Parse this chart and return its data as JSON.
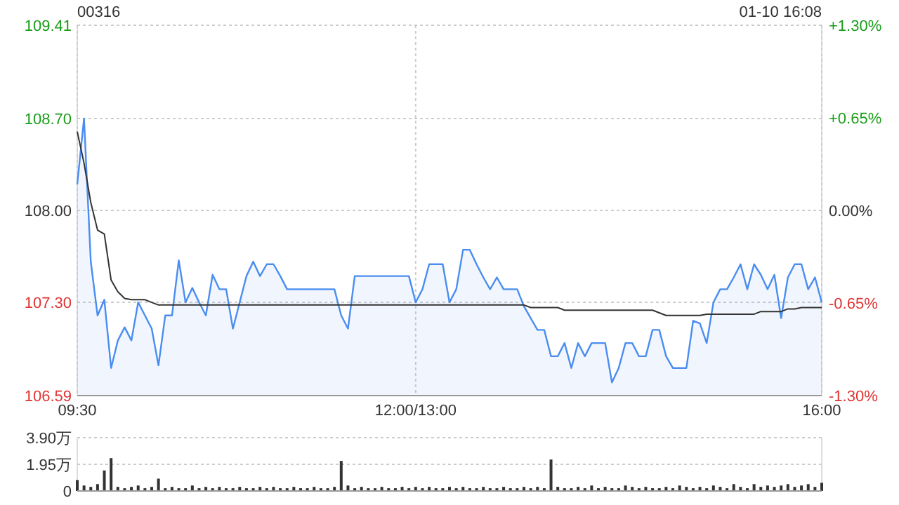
{
  "chart_data": [
    {
      "type": "line",
      "title": "00316",
      "subtitle": "01-10 16:08",
      "grid": true,
      "categories": [
        "09:30",
        null,
        null,
        null,
        null,
        null,
        null,
        null,
        null,
        null,
        null,
        null,
        null,
        null,
        null,
        null,
        null,
        null,
        null,
        null,
        null,
        null,
        null,
        null,
        null,
        null,
        null,
        null,
        null,
        null,
        null,
        null,
        null,
        null,
        null,
        null,
        null,
        null,
        null,
        null,
        null,
        null,
        null,
        null,
        null,
        null,
        null,
        null,
        null,
        null,
        "12:00/13:00",
        null,
        null,
        null,
        null,
        null,
        null,
        null,
        null,
        null,
        null,
        null,
        null,
        null,
        null,
        null,
        null,
        null,
        null,
        null,
        null,
        null,
        null,
        null,
        null,
        null,
        null,
        null,
        null,
        null,
        null,
        null,
        null,
        null,
        null,
        null,
        null,
        null,
        null,
        null,
        null,
        null,
        null,
        null,
        null,
        null,
        null,
        null,
        null,
        null,
        null,
        null,
        null,
        null,
        null,
        null,
        null,
        null,
        null,
        null,
        "16:00"
      ],
      "ylim": [
        106.59,
        109.41
      ],
      "yticks": [
        106.59,
        {
          "value": 107.3,
          "label": "107.30"
        },
        {
          "value": 108,
          "label": "108.00"
        },
        {
          "value": 108.7,
          "label": "108.70"
        },
        109.41
      ],
      "y2lim": [
        -1.3,
        1.3
      ],
      "y2ticks": [
        {
          "value": -1.3,
          "label": "-1.30%"
        },
        {
          "value": -0.65,
          "label": "-0.65%"
        },
        {
          "value": 0,
          "label": "0.00%"
        },
        {
          "value": 0.65,
          "label": "+0.65%"
        },
        {
          "value": 1.3,
          "label": "+1.30%"
        }
      ],
      "series": [
        {
          "type": "area",
          "color": "#4a8df0",
          "values": [
            108.2,
            108.7,
            107.61,
            107.2,
            107.32,
            106.8,
            107.01,
            107.11,
            107.01,
            107.3,
            107.2,
            107.1,
            106.82,
            107.2,
            107.2,
            107.62,
            107.3,
            107.41,
            107.3,
            107.2,
            107.51,
            107.4,
            107.4,
            107.1,
            107.3,
            107.5,
            107.61,
            107.5,
            107.59,
            107.59,
            107.5,
            107.4,
            107.4,
            107.4,
            107.4,
            107.4,
            107.4,
            107.4,
            107.4,
            107.2,
            107.1,
            107.5,
            107.5,
            107.5,
            107.5,
            107.5,
            107.5,
            107.5,
            107.5,
            107.5,
            107.3,
            107.4,
            107.59,
            107.59,
            107.59,
            107.3,
            107.4,
            107.7,
            107.7,
            107.59,
            107.49,
            107.4,
            107.49,
            107.4,
            107.4,
            107.4,
            107.27,
            107.18,
            107.09,
            107.09,
            106.89,
            106.89,
            106.99,
            106.8,
            106.99,
            106.89,
            106.99,
            106.99,
            106.99,
            106.69,
            106.8,
            106.99,
            106.99,
            106.89,
            106.89,
            107.09,
            107.09,
            106.89,
            106.8,
            106.8,
            106.8,
            107.16,
            107.14,
            106.99,
            107.3,
            107.4,
            107.4,
            107.49,
            107.59,
            107.4,
            107.59,
            107.51,
            107.4,
            107.51,
            107.18,
            107.49,
            107.59,
            107.59,
            107.4,
            107.49,
            107.3
          ]
        },
        {
          "color": "#333333",
          "values": [
            108.6,
            108.36,
            108.06,
            107.85,
            107.82,
            107.47,
            107.38,
            107.33,
            107.32,
            107.32,
            107.32,
            107.3,
            107.28,
            107.28,
            107.28,
            107.28,
            107.28,
            107.28,
            107.28,
            107.28,
            107.28,
            107.28,
            107.28,
            107.28,
            107.28,
            107.28,
            107.28,
            107.28,
            107.28,
            107.28,
            107.28,
            107.28,
            107.28,
            107.28,
            107.28,
            107.28,
            107.28,
            107.28,
            107.28,
            107.28,
            107.28,
            107.28,
            107.28,
            107.28,
            107.28,
            107.28,
            107.28,
            107.28,
            107.28,
            107.28,
            107.28,
            107.28,
            107.28,
            107.28,
            107.28,
            107.28,
            107.28,
            107.28,
            107.28,
            107.28,
            107.28,
            107.28,
            107.28,
            107.28,
            107.28,
            107.28,
            107.28,
            107.26,
            107.26,
            107.26,
            107.26,
            107.26,
            107.24,
            107.24,
            107.24,
            107.24,
            107.24,
            107.24,
            107.24,
            107.24,
            107.24,
            107.24,
            107.24,
            107.24,
            107.24,
            107.24,
            107.22,
            107.2,
            107.2,
            107.2,
            107.2,
            107.2,
            107.2,
            107.21,
            107.21,
            107.21,
            107.21,
            107.21,
            107.21,
            107.21,
            107.21,
            107.23,
            107.23,
            107.23,
            107.23,
            107.25,
            107.25,
            107.26,
            107.26,
            107.26,
            107.26
          ]
        }
      ]
    },
    {
      "type": "bar",
      "grid": "y",
      "tick_labels": "y",
      "categories": [
        null,
        null,
        null,
        null,
        null,
        null,
        null,
        null,
        null,
        null,
        null,
        null,
        null,
        null,
        null,
        null,
        null,
        null,
        null,
        null,
        null,
        null,
        null,
        null,
        null,
        null,
        null,
        null,
        null,
        null,
        null,
        null,
        null,
        null,
        null,
        null,
        null,
        null,
        null,
        null,
        null,
        null,
        null,
        null,
        null,
        null,
        null,
        null,
        null,
        null,
        null,
        null,
        null,
        null,
        null,
        null,
        null,
        null,
        null,
        null,
        null,
        null,
        null,
        null,
        null,
        null,
        null,
        null,
        null,
        null,
        null,
        null,
        null,
        null,
        null,
        null,
        null,
        null,
        null,
        null,
        null,
        null,
        null,
        null,
        null,
        null,
        null,
        null,
        null,
        null,
        null,
        null,
        null,
        null,
        null,
        null,
        null,
        null,
        null,
        null,
        null,
        null,
        null,
        null,
        null,
        null,
        null,
        null,
        null,
        null,
        null
      ],
      "ylim": [
        0,
        3.9
      ],
      "yticks": [
        {
          "value": 0,
          "label": "0"
        },
        {
          "value": 1.95,
          "label": "1.95万"
        },
        {
          "value": 3.9,
          "label": "3.90万"
        }
      ],
      "series": [
        {
          "color": "#333333",
          "values": [
            0.8,
            0.4,
            0.3,
            0.5,
            1.5,
            2.4,
            0.3,
            0.2,
            0.3,
            0.4,
            0.2,
            0.3,
            0.9,
            0.2,
            0.3,
            0.2,
            0.2,
            0.4,
            0.2,
            0.3,
            0.2,
            0.3,
            0.2,
            0.2,
            0.3,
            0.2,
            0.2,
            0.3,
            0.2,
            0.3,
            0.2,
            0.2,
            0.3,
            0.2,
            0.2,
            0.3,
            0.2,
            0.2,
            0.3,
            2.2,
            0.4,
            0.2,
            0.3,
            0.2,
            0.2,
            0.3,
            0.2,
            0.2,
            0.3,
            0.2,
            0.3,
            0.2,
            0.3,
            0.2,
            0.2,
            0.3,
            0.2,
            0.3,
            0.2,
            0.2,
            0.3,
            0.2,
            0.2,
            0.3,
            0.2,
            0.2,
            0.3,
            0.2,
            0.3,
            0.2,
            2.3,
            0.3,
            0.2,
            0.2,
            0.3,
            0.2,
            0.4,
            0.2,
            0.3,
            0.2,
            0.2,
            0.4,
            0.3,
            0.2,
            0.3,
            0.2,
            0.2,
            0.3,
            0.2,
            0.4,
            0.3,
            0.2,
            0.3,
            0.2,
            0.4,
            0.3,
            0.2,
            0.5,
            0.3,
            0.2,
            0.5,
            0.3,
            0.4,
            0.3,
            0.4,
            0.5,
            0.3,
            0.4,
            0.5,
            0.3,
            0.6
          ]
        }
      ]
    }
  ]
}
